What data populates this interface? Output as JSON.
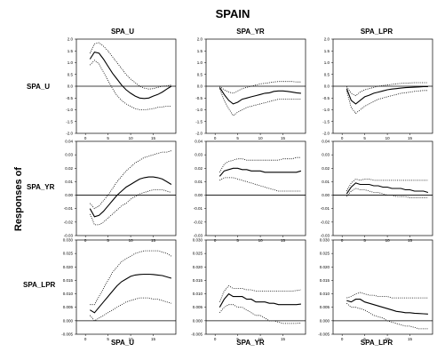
{
  "figure": {
    "title": "SPAIN",
    "ylabel": "Responses of",
    "columns": [
      "SPA_U",
      "SPA_YR",
      "SPA_LPR"
    ],
    "rows": [
      "SPA_U",
      "SPA_YR",
      "SPA_LPR"
    ],
    "xlabels": [
      "SPA_U",
      "SPA_YR",
      "SPA_LPR"
    ]
  },
  "chart_data": [
    {
      "type": "line",
      "row": "SPA_U",
      "col": "SPA_U",
      "x": [
        1,
        2,
        3,
        4,
        5,
        6,
        7,
        8,
        9,
        10,
        11,
        12,
        13,
        14,
        15,
        16,
        17,
        18,
        19
      ],
      "xticks": [
        0,
        5,
        10,
        15
      ],
      "ylim": [
        -2.0,
        2.0
      ],
      "yticks": [
        "2.0",
        "1.5",
        "1.0",
        "0.5",
        "0.0",
        "-0.5",
        "-1.0",
        "-1.5",
        "-2.0"
      ],
      "series": [
        {
          "style": "solid",
          "values": [
            1.15,
            1.45,
            1.4,
            1.15,
            0.85,
            0.55,
            0.3,
            0.05,
            -0.15,
            -0.3,
            -0.42,
            -0.5,
            -0.52,
            -0.5,
            -0.42,
            -0.35,
            -0.25,
            -0.12,
            0.0
          ]
        },
        {
          "style": "dotted",
          "values": [
            1.4,
            1.8,
            1.85,
            1.7,
            1.5,
            1.25,
            1.0,
            0.75,
            0.5,
            0.3,
            0.15,
            0.0,
            -0.08,
            -0.12,
            -0.1,
            -0.05,
            0.0,
            0.02,
            0.05
          ]
        },
        {
          "style": "dotted",
          "values": [
            0.9,
            1.1,
            0.95,
            0.6,
            0.25,
            -0.1,
            -0.4,
            -0.6,
            -0.75,
            -0.85,
            -0.95,
            -1.0,
            -1.0,
            -0.98,
            -0.95,
            -0.9,
            -0.88,
            -0.85,
            -0.85
          ]
        }
      ]
    },
    {
      "type": "line",
      "row": "SPA_U",
      "col": "SPA_YR",
      "x": [
        1,
        2,
        3,
        4,
        5,
        6,
        7,
        8,
        9,
        10,
        11,
        12,
        13,
        14,
        15,
        16,
        17,
        18,
        19
      ],
      "xticks": [
        0,
        5,
        10,
        15
      ],
      "ylim": [
        -2.0,
        2.0
      ],
      "yticks": [
        "2.0",
        "1.5",
        "1.0",
        "0.5",
        "0.0",
        "-0.5",
        "-1.0",
        "-1.5",
        "-2.0"
      ],
      "series": [
        {
          "style": "solid",
          "values": [
            -0.05,
            -0.35,
            -0.6,
            -0.75,
            -0.68,
            -0.55,
            -0.5,
            -0.45,
            -0.4,
            -0.35,
            -0.3,
            -0.28,
            -0.22,
            -0.2,
            -0.2,
            -0.22,
            -0.25,
            -0.28,
            -0.3
          ]
        },
        {
          "style": "dotted",
          "values": [
            0.0,
            -0.15,
            -0.25,
            -0.3,
            -0.2,
            -0.1,
            -0.05,
            0.0,
            0.05,
            0.1,
            0.12,
            0.15,
            0.18,
            0.2,
            0.2,
            0.2,
            0.2,
            0.18,
            0.18
          ]
        },
        {
          "style": "dotted",
          "values": [
            -0.1,
            -0.6,
            -0.95,
            -1.25,
            -1.1,
            -1.0,
            -0.9,
            -0.85,
            -0.8,
            -0.75,
            -0.7,
            -0.65,
            -0.6,
            -0.55,
            -0.55,
            -0.55,
            -0.55,
            -0.55,
            -0.55
          ]
        }
      ]
    },
    {
      "type": "line",
      "row": "SPA_U",
      "col": "SPA_LPR",
      "x": [
        1,
        2,
        3,
        4,
        5,
        6,
        7,
        8,
        9,
        10,
        11,
        12,
        13,
        14,
        15,
        16,
        17,
        18,
        19
      ],
      "xticks": [
        0,
        5,
        10,
        15
      ],
      "ylim": [
        -2.0,
        2.0
      ],
      "yticks": [
        "2.0",
        "1.5",
        "1.0",
        "0.5",
        "0.0",
        "-0.5",
        "-1.0",
        "-1.5",
        "-2.0"
      ],
      "series": [
        {
          "style": "solid",
          "values": [
            -0.1,
            -0.6,
            -0.75,
            -0.6,
            -0.45,
            -0.38,
            -0.3,
            -0.25,
            -0.2,
            -0.15,
            -0.12,
            -0.1,
            -0.08,
            -0.06,
            -0.05,
            -0.04,
            -0.03,
            -0.02,
            -0.02
          ]
        },
        {
          "style": "dotted",
          "values": [
            -0.02,
            -0.3,
            -0.4,
            -0.25,
            -0.15,
            -0.1,
            -0.05,
            0.0,
            0.03,
            0.05,
            0.08,
            0.1,
            0.12,
            0.13,
            0.14,
            0.15,
            0.15,
            0.15,
            0.15
          ]
        },
        {
          "style": "dotted",
          "values": [
            -0.2,
            -0.9,
            -1.15,
            -1.0,
            -0.85,
            -0.75,
            -0.65,
            -0.55,
            -0.5,
            -0.45,
            -0.4,
            -0.35,
            -0.3,
            -0.28,
            -0.25,
            -0.22,
            -0.2,
            -0.18,
            -0.18
          ]
        }
      ]
    },
    {
      "type": "line",
      "row": "SPA_YR",
      "col": "SPA_U",
      "x": [
        1,
        2,
        3,
        4,
        5,
        6,
        7,
        8,
        9,
        10,
        11,
        12,
        13,
        14,
        15,
        16,
        17,
        18,
        19
      ],
      "xticks": [
        0,
        5,
        10,
        15
      ],
      "ylim": [
        -0.03,
        0.04
      ],
      "yticks": [
        "0.04",
        "0.03",
        "0.02",
        "0.01",
        "0.00",
        "-0.01",
        "-0.02",
        "-0.03"
      ],
      "series": [
        {
          "style": "solid",
          "values": [
            -0.01,
            -0.016,
            -0.015,
            -0.012,
            -0.008,
            -0.004,
            0.0,
            0.003,
            0.006,
            0.008,
            0.01,
            0.012,
            0.013,
            0.0135,
            0.0135,
            0.013,
            0.012,
            0.01,
            0.008
          ]
        },
        {
          "style": "dotted",
          "values": [
            -0.006,
            -0.01,
            -0.008,
            -0.004,
            0.0,
            0.005,
            0.01,
            0.014,
            0.018,
            0.021,
            0.024,
            0.026,
            0.028,
            0.029,
            0.03,
            0.031,
            0.032,
            0.032,
            0.033
          ]
        },
        {
          "style": "dotted",
          "values": [
            -0.014,
            -0.022,
            -0.022,
            -0.02,
            -0.017,
            -0.014,
            -0.011,
            -0.008,
            -0.006,
            -0.003,
            -0.001,
            0.001,
            0.002,
            0.003,
            0.004,
            0.004,
            0.004,
            0.003,
            0.002
          ]
        }
      ]
    },
    {
      "type": "line",
      "row": "SPA_YR",
      "col": "SPA_YR",
      "x": [
        1,
        2,
        3,
        4,
        5,
        6,
        7,
        8,
        9,
        10,
        11,
        12,
        13,
        14,
        15,
        16,
        17,
        18,
        19
      ],
      "xticks": [
        0,
        5,
        10,
        15
      ],
      "ylim": [
        -0.03,
        0.04
      ],
      "yticks": [
        "0.04",
        "0.03",
        "0.02",
        "0.01",
        "0.00",
        "-0.01",
        "-0.02",
        "-0.03"
      ],
      "series": [
        {
          "style": "solid",
          "values": [
            0.014,
            0.018,
            0.019,
            0.02,
            0.02,
            0.019,
            0.019,
            0.018,
            0.018,
            0.018,
            0.017,
            0.017,
            0.017,
            0.017,
            0.017,
            0.017,
            0.017,
            0.017,
            0.018
          ]
        },
        {
          "style": "dotted",
          "values": [
            0.017,
            0.023,
            0.025,
            0.026,
            0.027,
            0.027,
            0.026,
            0.026,
            0.026,
            0.026,
            0.026,
            0.026,
            0.026,
            0.026,
            0.027,
            0.027,
            0.027,
            0.028,
            0.028
          ]
        },
        {
          "style": "dotted",
          "values": [
            0.011,
            0.013,
            0.013,
            0.013,
            0.012,
            0.011,
            0.01,
            0.009,
            0.008,
            0.007,
            0.006,
            0.005,
            0.004,
            0.003,
            0.003,
            0.003,
            0.003,
            0.003,
            0.003
          ]
        }
      ]
    },
    {
      "type": "line",
      "row": "SPA_YR",
      "col": "SPA_LPR",
      "x": [
        1,
        2,
        3,
        4,
        5,
        6,
        7,
        8,
        9,
        10,
        11,
        12,
        13,
        14,
        15,
        16,
        17,
        18,
        19
      ],
      "xticks": [
        0,
        5,
        10,
        15
      ],
      "ylim": [
        -0.03,
        0.04
      ],
      "yticks": [
        "0.04",
        "0.03",
        "0.02",
        "0.01",
        "0.00",
        "-0.01",
        "-0.02",
        "-0.03"
      ],
      "series": [
        {
          "style": "solid",
          "values": [
            0.001,
            0.006,
            0.009,
            0.008,
            0.008,
            0.008,
            0.007,
            0.007,
            0.006,
            0.006,
            0.005,
            0.005,
            0.005,
            0.004,
            0.004,
            0.003,
            0.003,
            0.003,
            0.002
          ]
        },
        {
          "style": "dotted",
          "values": [
            0.003,
            0.009,
            0.012,
            0.011,
            0.012,
            0.012,
            0.011,
            0.011,
            0.011,
            0.011,
            0.011,
            0.011,
            0.011,
            0.011,
            0.011,
            0.011,
            0.011,
            0.011,
            0.011
          ]
        },
        {
          "style": "dotted",
          "values": [
            -0.001,
            0.003,
            0.005,
            0.004,
            0.004,
            0.003,
            0.002,
            0.002,
            0.001,
            0.0,
            0.0,
            -0.001,
            -0.001,
            -0.001,
            -0.002,
            -0.002,
            -0.002,
            -0.002,
            -0.002
          ]
        }
      ]
    },
    {
      "type": "line",
      "row": "SPA_LPR",
      "col": "SPA_U",
      "x": [
        1,
        2,
        3,
        4,
        5,
        6,
        7,
        8,
        9,
        10,
        11,
        12,
        13,
        14,
        15,
        16,
        17,
        18,
        19
      ],
      "xticks": [
        0,
        5,
        10,
        15
      ],
      "ylim": [
        -0.005,
        0.03
      ],
      "yticks": [
        "0.030",
        "0.025",
        "0.020",
        "0.015",
        "0.010",
        "0.005",
        "0.000",
        "-0.005"
      ],
      "series": [
        {
          "style": "solid",
          "values": [
            0.004,
            0.003,
            0.005,
            0.007,
            0.009,
            0.011,
            0.013,
            0.0145,
            0.0155,
            0.0165,
            0.017,
            0.0172,
            0.0173,
            0.0173,
            0.0172,
            0.017,
            0.0168,
            0.0163,
            0.0158
          ]
        },
        {
          "style": "dotted",
          "values": [
            0.006,
            0.006,
            0.009,
            0.012,
            0.015,
            0.018,
            0.02,
            0.022,
            0.023,
            0.024,
            0.025,
            0.0255,
            0.026,
            0.026,
            0.026,
            0.026,
            0.0255,
            0.025,
            0.024
          ]
        },
        {
          "style": "dotted",
          "values": [
            0.002,
            0.0,
            0.001,
            0.002,
            0.003,
            0.004,
            0.005,
            0.006,
            0.007,
            0.0075,
            0.008,
            0.0085,
            0.0085,
            0.0085,
            0.008,
            0.008,
            0.0075,
            0.007,
            0.0065
          ]
        }
      ]
    },
    {
      "type": "line",
      "row": "SPA_LPR",
      "col": "SPA_YR",
      "x": [
        1,
        2,
        3,
        4,
        5,
        6,
        7,
        8,
        9,
        10,
        11,
        12,
        13,
        14,
        15,
        16,
        17,
        18,
        19
      ],
      "xticks": [
        0,
        5,
        10,
        15
      ],
      "ylim": [
        -0.005,
        0.03
      ],
      "yticks": [
        "0.030",
        "0.025",
        "0.020",
        "0.015",
        "0.010",
        "0.005",
        "0.000",
        "-0.005"
      ],
      "series": [
        {
          "style": "solid",
          "values": [
            0.005,
            0.008,
            0.01,
            0.009,
            0.009,
            0.009,
            0.008,
            0.008,
            0.007,
            0.007,
            0.007,
            0.0065,
            0.0065,
            0.006,
            0.006,
            0.006,
            0.006,
            0.006,
            0.0062
          ]
        },
        {
          "style": "dotted",
          "values": [
            0.007,
            0.011,
            0.013,
            0.012,
            0.012,
            0.012,
            0.0115,
            0.0115,
            0.011,
            0.011,
            0.011,
            0.011,
            0.011,
            0.011,
            0.011,
            0.011,
            0.011,
            0.0112,
            0.0115
          ]
        },
        {
          "style": "dotted",
          "values": [
            0.003,
            0.005,
            0.006,
            0.006,
            0.005,
            0.005,
            0.004,
            0.003,
            0.002,
            0.002,
            0.001,
            0.0,
            0.0,
            -0.0005,
            -0.001,
            -0.001,
            -0.001,
            -0.001,
            -0.0008
          ]
        }
      ]
    },
    {
      "type": "line",
      "row": "SPA_LPR",
      "col": "SPA_LPR",
      "x": [
        1,
        2,
        3,
        4,
        5,
        6,
        7,
        8,
        9,
        10,
        11,
        12,
        13,
        14,
        15,
        16,
        17,
        18,
        19
      ],
      "xticks": [
        0,
        5,
        10,
        15
      ],
      "ylim": [
        -0.005,
        0.03
      ],
      "yticks": [
        "0.030",
        "0.025",
        "0.020",
        "0.015",
        "0.010",
        "0.005",
        "0.000",
        "-0.005"
      ],
      "series": [
        {
          "style": "solid",
          "values": [
            0.0075,
            0.007,
            0.008,
            0.008,
            0.007,
            0.0065,
            0.006,
            0.0055,
            0.005,
            0.0045,
            0.004,
            0.0035,
            0.0033,
            0.003,
            0.003,
            0.0028,
            0.0027,
            0.0026,
            0.0025
          ]
        },
        {
          "style": "dotted",
          "values": [
            0.0085,
            0.009,
            0.01,
            0.0105,
            0.01,
            0.0095,
            0.0095,
            0.009,
            0.009,
            0.009,
            0.0085,
            0.0085,
            0.0085,
            0.0085,
            0.0085,
            0.0085,
            0.0085,
            0.0085,
            0.0085
          ]
        },
        {
          "style": "dotted",
          "values": [
            0.0065,
            0.005,
            0.005,
            0.0045,
            0.004,
            0.003,
            0.002,
            0.0015,
            0.001,
            0.0,
            -0.0005,
            -0.001,
            -0.0015,
            -0.002,
            -0.002,
            -0.0025,
            -0.003,
            -0.003,
            -0.003
          ]
        }
      ]
    }
  ]
}
